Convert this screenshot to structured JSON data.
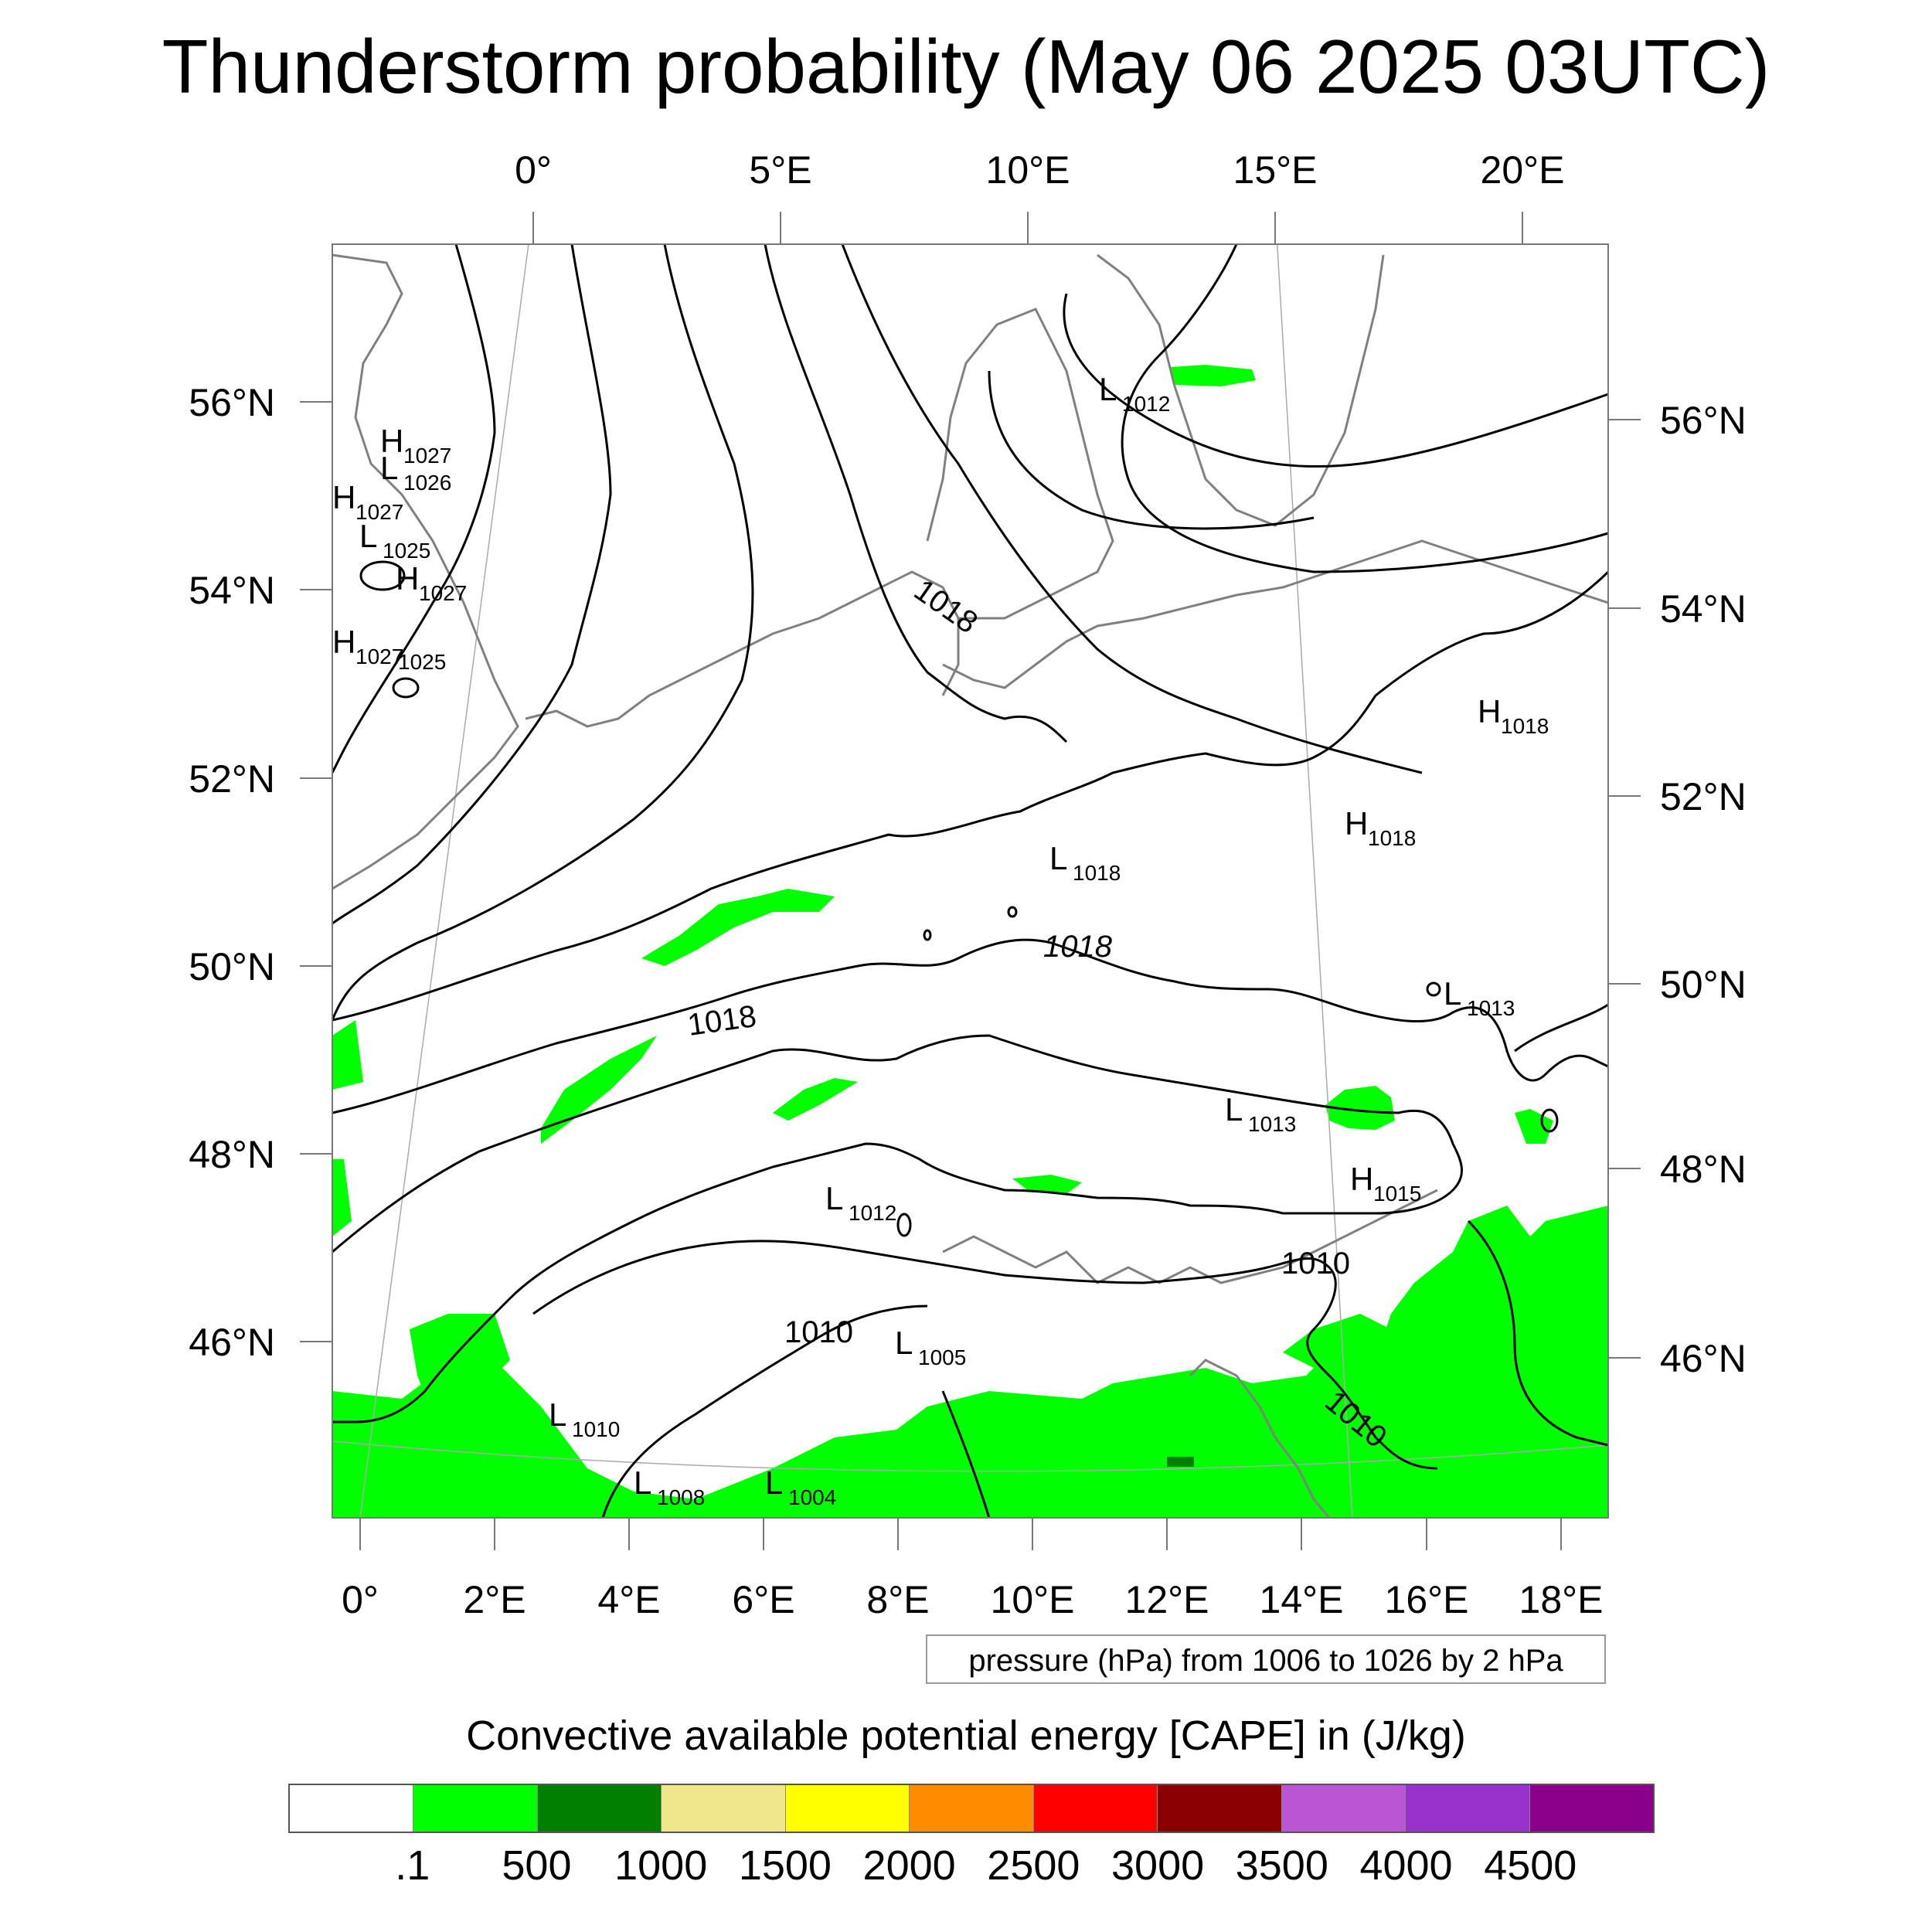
{
  "title": "Thunderstorm probability (May 06 2025 03UTC)",
  "map": {
    "top_lon_labels": [
      "0°",
      "5°E",
      "10°E",
      "15°E",
      "20°E"
    ],
    "bottom_lon_labels": [
      "0°",
      "2°E",
      "4°E",
      "6°E",
      "8°E",
      "10°E",
      "12°E",
      "14°E",
      "16°E",
      "18°E"
    ],
    "left_lat_labels": [
      "56°N",
      "54°N",
      "52°N",
      "50°N",
      "48°N",
      "46°N"
    ],
    "right_lat_labels": [
      "56°N",
      "54°N",
      "52°N",
      "50°N",
      "48°N",
      "46°N"
    ],
    "pressure_centers": [
      {
        "type": "H",
        "value": "1027"
      },
      {
        "type": "L",
        "value": "1026"
      },
      {
        "type": "H",
        "value": "1027"
      },
      {
        "type": "L",
        "value": "1025"
      },
      {
        "type": "H",
        "value": "1027"
      },
      {
        "type": "H",
        "value": "1027"
      },
      {
        "type": "L",
        "value": "1025"
      },
      {
        "type": "L",
        "value": "1012"
      },
      {
        "type": "H",
        "value": "1018"
      },
      {
        "type": "H",
        "value": "1018"
      },
      {
        "type": "L",
        "value": "1018"
      },
      {
        "type": "L",
        "value": "1013"
      },
      {
        "type": "L",
        "value": "1013"
      },
      {
        "type": "H",
        "value": "1015"
      },
      {
        "type": "L",
        "value": "1012"
      },
      {
        "type": "L",
        "value": "1005"
      },
      {
        "type": "L",
        "value": "1010"
      },
      {
        "type": "L",
        "value": "1008"
      },
      {
        "type": "L",
        "value": "1004"
      }
    ],
    "contour_labels": [
      "1018",
      "1018",
      "1018",
      "1010",
      "1010",
      "1010"
    ]
  },
  "info_box": "pressure (hPa) from 1006 to 1026 by 2 hPa",
  "colorbar": {
    "title": "Convective available potential energy [CAPE] in (J/kg)",
    "colors": [
      "#ffffff",
      "#00ff00",
      "#007f00",
      "#f0e68c",
      "#ffff00",
      "#ff8c00",
      "#ff0000",
      "#8b0000",
      "#ba55d3",
      "#9932cc",
      "#8b008b"
    ],
    "labels": [
      ".1",
      "500",
      "1000",
      "1500",
      "2000",
      "2500",
      "3000",
      "3500",
      "4000",
      "4500"
    ]
  },
  "colors": {
    "cape_low": "#00ff00",
    "cape_mid": "#007f00",
    "coast": "#808080",
    "isobar": "#000000"
  }
}
